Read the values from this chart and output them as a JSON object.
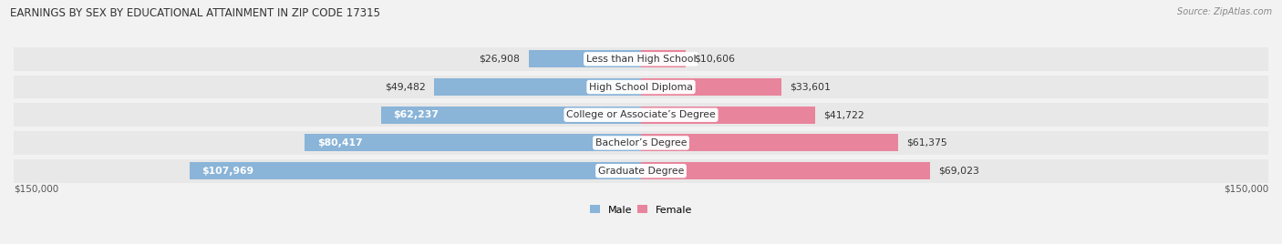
{
  "title": "EARNINGS BY SEX BY EDUCATIONAL ATTAINMENT IN ZIP CODE 17315",
  "source": "Source: ZipAtlas.com",
  "categories": [
    "Less than High School",
    "High School Diploma",
    "College or Associate’s Degree",
    "Bachelor’s Degree",
    "Graduate Degree"
  ],
  "male_values": [
    26908,
    49482,
    62237,
    80417,
    107969
  ],
  "female_values": [
    10606,
    33601,
    41722,
    61375,
    69023
  ],
  "male_labels": [
    "$26,908",
    "$49,482",
    "$62,237",
    "$80,417",
    "$107,969"
  ],
  "female_labels": [
    "$10,606",
    "$33,601",
    "$41,722",
    "$61,375",
    "$69,023"
  ],
  "male_color": "#8ab4d8",
  "female_color": "#e8849c",
  "max_value": 150000,
  "axis_label": "$150,000",
  "background_color": "#f2f2f2",
  "row_colors": [
    "#e8e8e8",
    "#e0e0e0"
  ],
  "bar_height": 0.62,
  "legend_male": "Male",
  "legend_female": "Female"
}
